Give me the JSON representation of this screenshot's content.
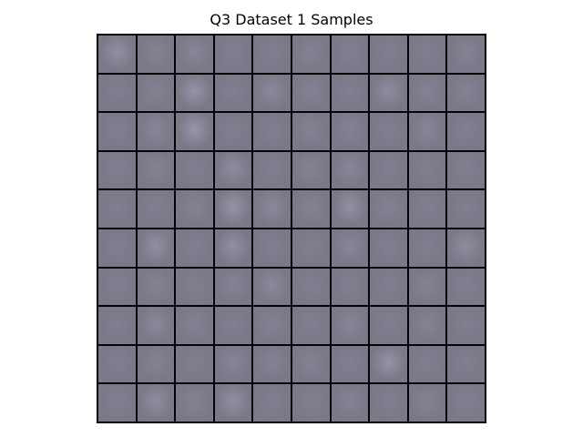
{
  "figure": {
    "title": "Q3 Dataset 1 Samples"
  },
  "grid": {
    "rows": 10,
    "cols": 10,
    "tile_base_color": "#7a7888",
    "border_color": "#000000",
    "tile_brightness": [
      [
        0.35,
        0.15,
        0.2,
        0.1,
        0.1,
        0.15,
        0.1,
        0.1,
        0.1,
        0.15
      ],
      [
        0.1,
        0.15,
        0.4,
        0.1,
        0.25,
        0.15,
        0.1,
        0.3,
        0.15,
        0.15
      ],
      [
        0.1,
        0.2,
        0.45,
        0.1,
        0.1,
        0.15,
        0.15,
        0.1,
        0.2,
        0.1
      ],
      [
        0.1,
        0.15,
        0.1,
        0.3,
        0.1,
        0.15,
        0.2,
        0.1,
        0.1,
        0.1
      ],
      [
        0.1,
        0.1,
        0.15,
        0.4,
        0.25,
        0.15,
        0.35,
        0.15,
        0.1,
        0.1
      ],
      [
        0.1,
        0.35,
        0.1,
        0.35,
        0.1,
        0.1,
        0.2,
        0.1,
        0.1,
        0.3
      ],
      [
        0.1,
        0.15,
        0.1,
        0.15,
        0.25,
        0.1,
        0.1,
        0.1,
        0.15,
        0.1
      ],
      [
        0.1,
        0.25,
        0.15,
        0.1,
        0.15,
        0.1,
        0.2,
        0.1,
        0.15,
        0.1
      ],
      [
        0.1,
        0.15,
        0.1,
        0.2,
        0.15,
        0.15,
        0.1,
        0.4,
        0.1,
        0.1
      ],
      [
        0.1,
        0.3,
        0.15,
        0.35,
        0.1,
        0.1,
        0.15,
        0.1,
        0.15,
        0.1
      ]
    ]
  }
}
